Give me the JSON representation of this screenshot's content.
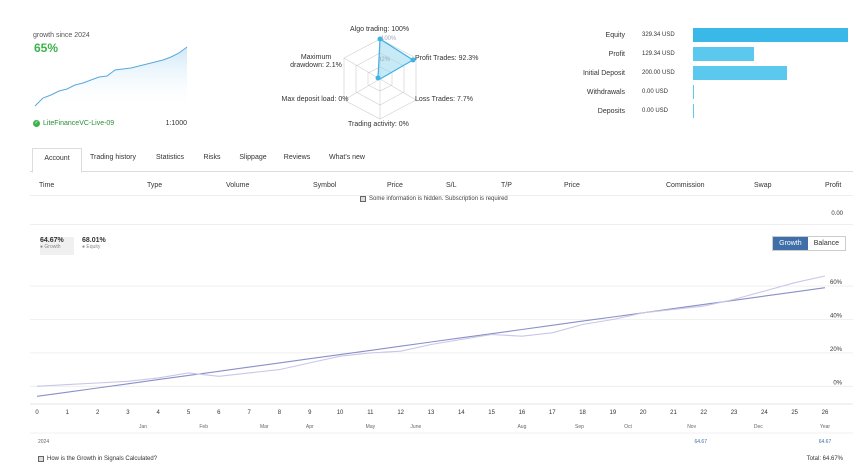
{
  "summary": {
    "growth_label": "growth since 2024",
    "growth_value": "65%",
    "account_name": "LiteFinanceVC-Live-09",
    "leverage": "1:1000"
  },
  "radar": {
    "algo_trading": "Algo trading: 100%",
    "algo_inner": "100%",
    "profit_trades": "Profit Trades: 92.3%",
    "max_drawdown": "Maximum drawdown: 2.1%",
    "inner_center": "92%",
    "max_deposit_load": "Max deposit load: 0%",
    "loss_trades": "Loss Trades: 7.7%",
    "trading_activity": "Trading activity: 0%"
  },
  "bars": [
    {
      "label": "Equity",
      "value": "329.34 USD",
      "amount": 329.34
    },
    {
      "label": "Profit",
      "value": "129.34 USD",
      "amount": 129.34
    },
    {
      "label": "Initial Deposit",
      "value": "200.00 USD",
      "amount": 200.0
    },
    {
      "label": "Withdrawals",
      "value": "0.00 USD",
      "amount": 0
    },
    {
      "label": "Deposits",
      "value": "0.00 USD",
      "amount": 0
    }
  ],
  "tabs": [
    "Account",
    "Trading history",
    "Statistics",
    "Risks",
    "Slippage",
    "Reviews",
    "What's new"
  ],
  "table": {
    "headers": [
      "Time",
      "Type",
      "Volume",
      "Symbol",
      "Price",
      "S/L",
      "T/P",
      "Price",
      "Commission",
      "Swap",
      "Profit"
    ],
    "hidden_note": "Some information is hidden. Subscription is required",
    "total_profit": "0.00"
  },
  "legend": [
    {
      "value": "64.67%",
      "name": "Growth"
    },
    {
      "value": "68.01%",
      "name": "Equity"
    }
  ],
  "toggle": {
    "growth": "Growth",
    "balance": "Balance"
  },
  "chart_data": {
    "type": "line",
    "x": [
      0,
      1,
      2,
      3,
      4,
      5,
      6,
      7,
      8,
      9,
      10,
      11,
      12,
      13,
      14,
      15,
      16,
      17,
      18,
      19,
      20,
      21,
      22,
      23,
      24,
      25,
      26
    ],
    "xlabels": [
      "0",
      "1",
      "2",
      "3",
      "4",
      "5",
      "6",
      "7",
      "8",
      "9",
      "10",
      "11",
      "12",
      "13",
      "14",
      "15",
      "16",
      "17",
      "18",
      "19",
      "20",
      "21",
      "22",
      "23",
      "24",
      "25",
      "26"
    ],
    "months": [
      "Jan",
      "Feb",
      "Mar",
      "Apr",
      "May",
      "June",
      "Aug",
      "Sep",
      "Oct",
      "Nov",
      "Dec",
      "Year"
    ],
    "yticks": [
      "0%",
      "20%",
      "40%",
      "60%"
    ],
    "ylim": [
      -7,
      72
    ],
    "series": [
      {
        "name": "Growth",
        "color": "#8b8fc9",
        "values": [
          -6,
          -3.5,
          -1,
          1.5,
          4,
          6.5,
          9,
          11.5,
          14,
          16.5,
          19,
          21.5,
          24,
          26.5,
          29,
          31.5,
          34,
          36.5,
          39,
          41.5,
          44,
          46.5,
          49,
          51.5,
          54,
          56.5,
          59
        ]
      },
      {
        "name": "Equity",
        "color": "#c8c7e8",
        "values": [
          0,
          1,
          2,
          3,
          5,
          8,
          6,
          8,
          10,
          14,
          18,
          20,
          21,
          25,
          28,
          31,
          30,
          32,
          37,
          40,
          44,
          46,
          48,
          52,
          57,
          62,
          66
        ]
      }
    ],
    "year_row": {
      "year": "2024",
      "nov_value": "64.67",
      "year_value": "64.67"
    }
  },
  "footer": {
    "help_link": "How is the Growth in Signals Calculated?",
    "total": "Total: 64.67%"
  }
}
